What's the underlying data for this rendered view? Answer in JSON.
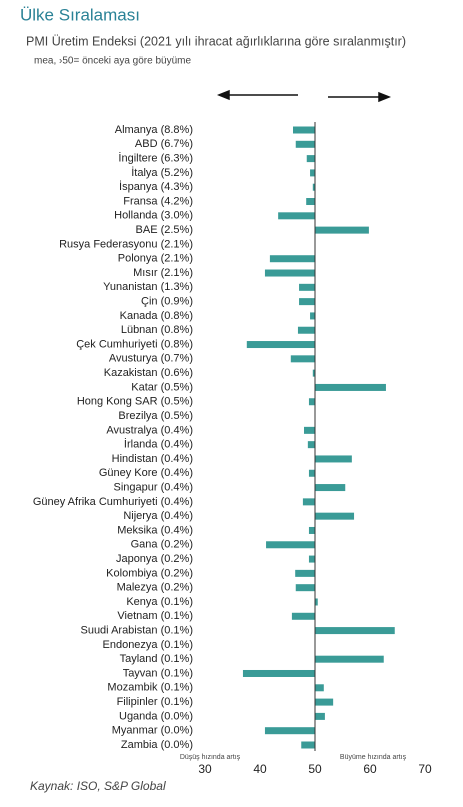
{
  "chart_data": {
    "type": "bar",
    "orientation": "horizontal",
    "title": "Ülke Sıralaması",
    "subtitle": "PMI Üretim Endeksi (2021 yılı ihracat ağırlıklarına göre sıralanmıştır)",
    "note": "mea, ›50= önceki aya göre büyüme",
    "left_axis_label": "Düşüş hızında artış",
    "right_axis_label": "Büyüme hızında artış",
    "source": "Kaynak: ISO, S&P Global",
    "color": "#3a9b97",
    "baseline": 50,
    "xlim": [
      30,
      70
    ],
    "xticks": [
      30,
      40,
      50,
      60,
      70
    ],
    "categories": [
      "Almanya (8.8%)",
      "ABD (6.7%)",
      "İngiltere (6.3%)",
      "İtalya (5.2%)",
      "İspanya (4.3%)",
      "Fransa (4.2%)",
      "Hollanda (3.0%)",
      "BAE (2.5%)",
      "Rusya Federasyonu (2.1%)",
      "Polonya (2.1%)",
      "Mısır (2.1%)",
      "Yunanistan (1.3%)",
      "Çin (0.9%)",
      "Kanada (0.8%)",
      "Lübnan (0.8%)",
      "Çek Cumhuriyeti (0.8%)",
      "Avusturya (0.7%)",
      "Kazakistan (0.6%)",
      "Katar (0.5%)",
      "Hong Kong SAR (0.5%)",
      "Brezilya (0.5%)",
      "Avustralya (0.4%)",
      "İrlanda (0.4%)",
      "Hindistan (0.4%)",
      "Güney Kore (0.4%)",
      "Singapur (0.4%)",
      "Güney Afrika Cumhuriyeti (0.4%)",
      "Nijerya (0.4%)",
      "Meksika (0.4%)",
      "Gana (0.2%)",
      "Japonya (0.2%)",
      "Kolombiya (0.2%)",
      "Malezya (0.2%)",
      "Kenya (0.1%)",
      "Vietnam (0.1%)",
      "Suudi Arabistan (0.1%)",
      "Endonezya (0.1%)",
      "Tayland (0.1%)",
      "Tayvan (0.1%)",
      "Mozambik (0.1%)",
      "Filipinler (0.1%)",
      "Uganda (0.0%)",
      "Myanmar (0.0%)",
      "Zambia (0.0%)"
    ],
    "values": [
      46.0,
      46.5,
      48.5,
      49.1,
      49.6,
      48.4,
      43.3,
      59.8,
      null,
      41.8,
      40.9,
      47.1,
      47.1,
      49.1,
      46.9,
      37.6,
      45.6,
      49.6,
      62.9,
      48.9,
      50.0,
      48.0,
      48.7,
      56.7,
      48.9,
      55.5,
      47.8,
      57.1,
      48.9,
      41.1,
      48.9,
      46.4,
      46.5,
      50.5,
      45.8,
      64.5,
      50.0,
      62.5,
      36.9,
      51.6,
      53.3,
      51.8,
      40.9,
      47.5
    ]
  }
}
